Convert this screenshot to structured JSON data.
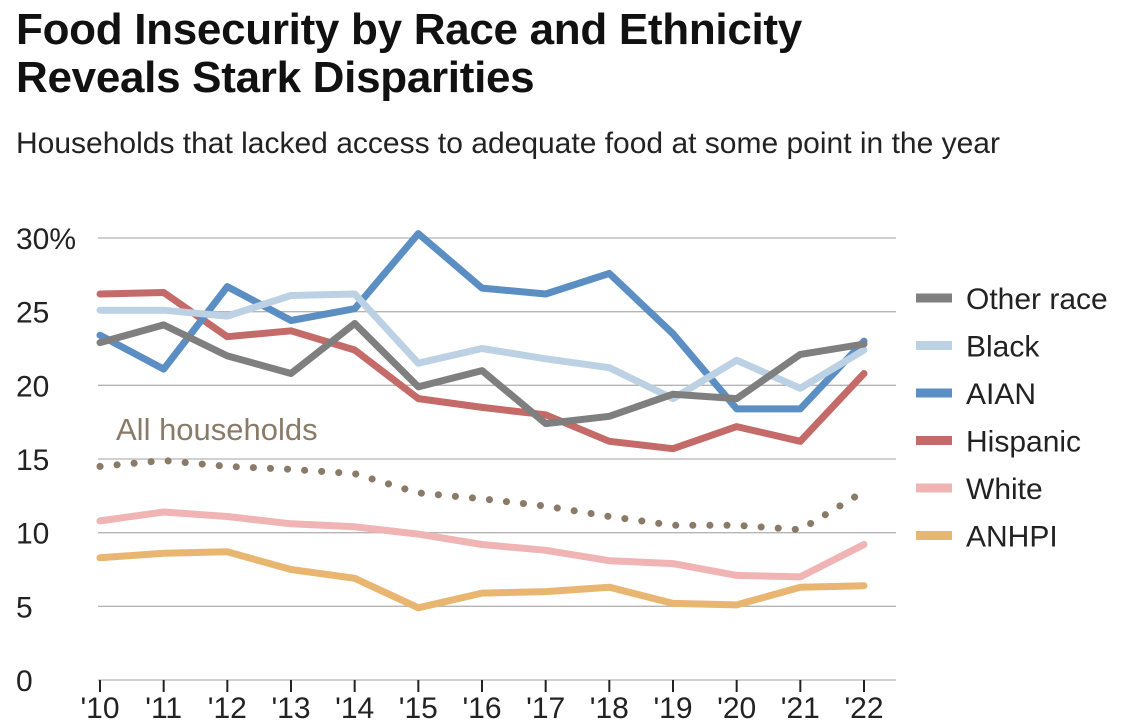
{
  "title_line1": "Food Insecurity by Race and Ethnicity",
  "title_line2": "Reveals Stark Disparities",
  "subtitle": "Households that lacked access to adequate food at some point in the year",
  "chart_data": {
    "type": "line",
    "categories": [
      "'10",
      "'11",
      "'12",
      "'13",
      "'14",
      "'15",
      "'16",
      "'17",
      "'18",
      "'19",
      "'20",
      "'21",
      "'22"
    ],
    "ylim": [
      0,
      30
    ],
    "yticks": [
      0,
      5,
      10,
      15,
      20,
      25,
      30
    ],
    "ytick_labels": [
      "0",
      "5",
      "10",
      "15",
      "20",
      "25",
      "30%"
    ],
    "grid": true,
    "legend_position": "right",
    "series": [
      {
        "name": "Other race",
        "color": "#7f7f7f",
        "style": "solid",
        "values": [
          22.9,
          24.1,
          22.0,
          20.8,
          24.2,
          19.9,
          21.0,
          17.4,
          17.9,
          19.4,
          19.1,
          22.1,
          22.8
        ]
      },
      {
        "name": "Black",
        "color": "#bcd1e3",
        "style": "solid",
        "values": [
          25.1,
          25.1,
          24.7,
          26.1,
          26.2,
          21.5,
          22.5,
          21.8,
          21.2,
          19.1,
          21.7,
          19.8,
          22.4
        ]
      },
      {
        "name": "AIAN",
        "color": "#5b8ec2",
        "style": "solid",
        "values": [
          23.4,
          21.1,
          26.7,
          24.4,
          25.2,
          30.3,
          26.6,
          26.2,
          27.6,
          23.5,
          18.4,
          18.4,
          23.0
        ]
      },
      {
        "name": "Hispanic",
        "color": "#c46a68",
        "style": "solid",
        "values": [
          26.2,
          26.3,
          23.3,
          23.7,
          22.4,
          19.1,
          18.5,
          18.0,
          16.2,
          15.7,
          17.2,
          16.2,
          20.8
        ]
      },
      {
        "name": "White",
        "color": "#f0b4b4",
        "style": "solid",
        "values": [
          10.8,
          11.4,
          11.1,
          10.6,
          10.4,
          9.9,
          9.2,
          8.8,
          8.1,
          7.9,
          7.1,
          7.0,
          9.2
        ]
      },
      {
        "name": "ANHPI",
        "color": "#e9b671",
        "style": "solid",
        "values": [
          8.3,
          8.6,
          8.7,
          7.5,
          6.9,
          4.9,
          5.9,
          6.0,
          6.3,
          5.2,
          5.1,
          6.3,
          6.4
        ]
      },
      {
        "name": "All households",
        "color": "#8a7a68",
        "style": "dotted",
        "values": [
          14.5,
          14.9,
          14.5,
          14.3,
          14.0,
          12.7,
          12.3,
          11.8,
          11.1,
          10.5,
          10.5,
          10.2,
          12.8
        ]
      }
    ],
    "annotations": [
      {
        "text": "All households",
        "series": "All households"
      }
    ]
  }
}
